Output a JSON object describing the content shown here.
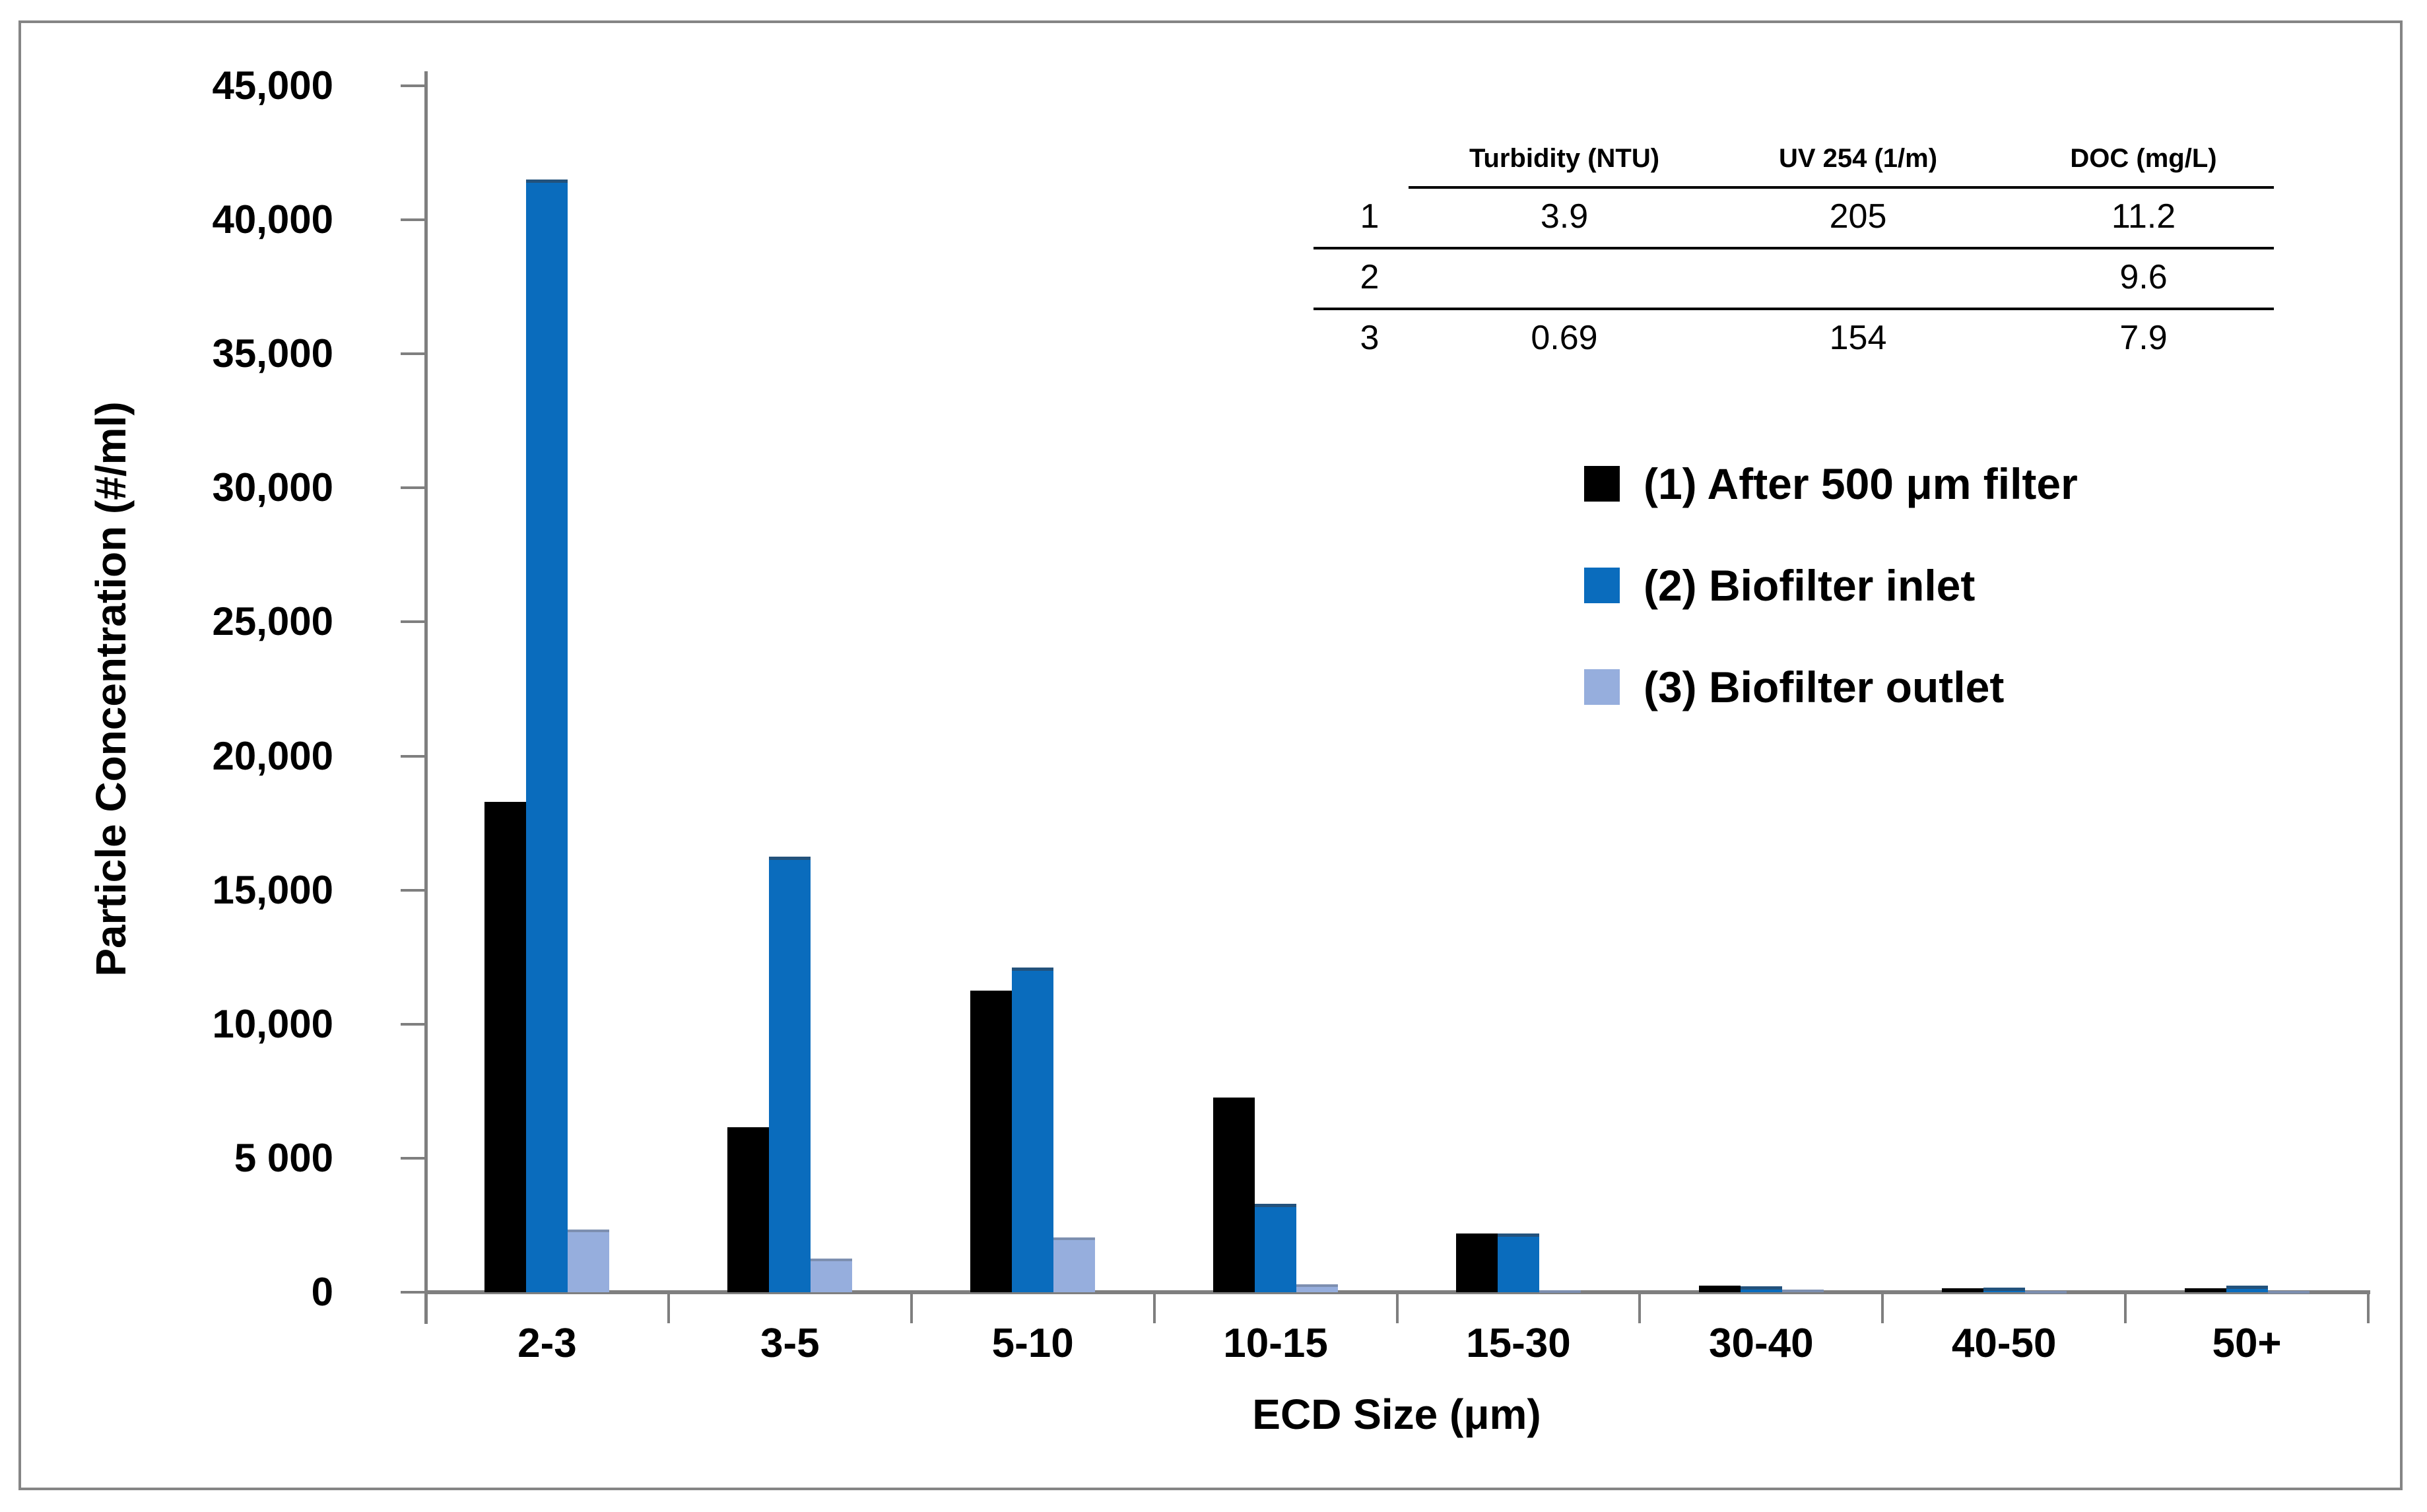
{
  "colors": {
    "series1": "#000000",
    "series2": "#0a6cbd",
    "series3": "#96aedd",
    "axis": "#7f7f7f",
    "figure_border": "#858585",
    "table_rule": "#000000",
    "background": "#ffffff"
  },
  "chart_data": {
    "type": "bar",
    "title": "",
    "categories": [
      "2-3",
      "3-5",
      "5-10",
      "10-15",
      "15-30",
      "30-40",
      "40-50",
      "50+"
    ],
    "series": [
      {
        "name": "(1) After 500 μm filter",
        "color": "#000000",
        "values": [
          18300,
          6150,
          11250,
          7250,
          2200,
          250,
          150,
          150
        ]
      },
      {
        "name": "(2) Biofilter inlet",
        "color": "#0a6cbd",
        "values": [
          41500,
          16250,
          12100,
          3300,
          2200,
          230,
          170,
          250
        ]
      },
      {
        "name": "(3) Biofilter outlet",
        "color": "#96aedd",
        "values": [
          2350,
          1250,
          2050,
          300,
          80,
          100,
          60,
          60
        ]
      }
    ],
    "xlabel": "ECD Size (μm)",
    "ylabel": "Particle Concentration (#/ml)",
    "ylim": [
      0,
      45000
    ],
    "y_ticks": [
      {
        "value": 45000,
        "label": "45,000"
      },
      {
        "value": 40000,
        "label": "40,000"
      },
      {
        "value": 35000,
        "label": "35,000"
      },
      {
        "value": 30000,
        "label": "30,000"
      },
      {
        "value": 25000,
        "label": "25,000"
      },
      {
        "value": 20000,
        "label": "20,000"
      },
      {
        "value": 15000,
        "label": "15,000"
      },
      {
        "value": 10000,
        "label": "10,000"
      },
      {
        "value": 5000,
        "label": "5 000"
      },
      {
        "value": 0,
        "label": "0"
      }
    ],
    "grid": false,
    "legend_position": "right"
  },
  "table": {
    "headers": [
      "",
      "Turbidity (NTU)",
      "UV 254 (1/m)",
      "DOC (mg/L)"
    ],
    "rows": [
      {
        "label": "1",
        "turbidity": "3.9",
        "uv254": "205",
        "doc": "11.2"
      },
      {
        "label": "2",
        "turbidity": "",
        "uv254": "",
        "doc": "9.6"
      },
      {
        "label": "3",
        "turbidity": "0.69",
        "uv254": "154",
        "doc": "7.9"
      }
    ]
  }
}
